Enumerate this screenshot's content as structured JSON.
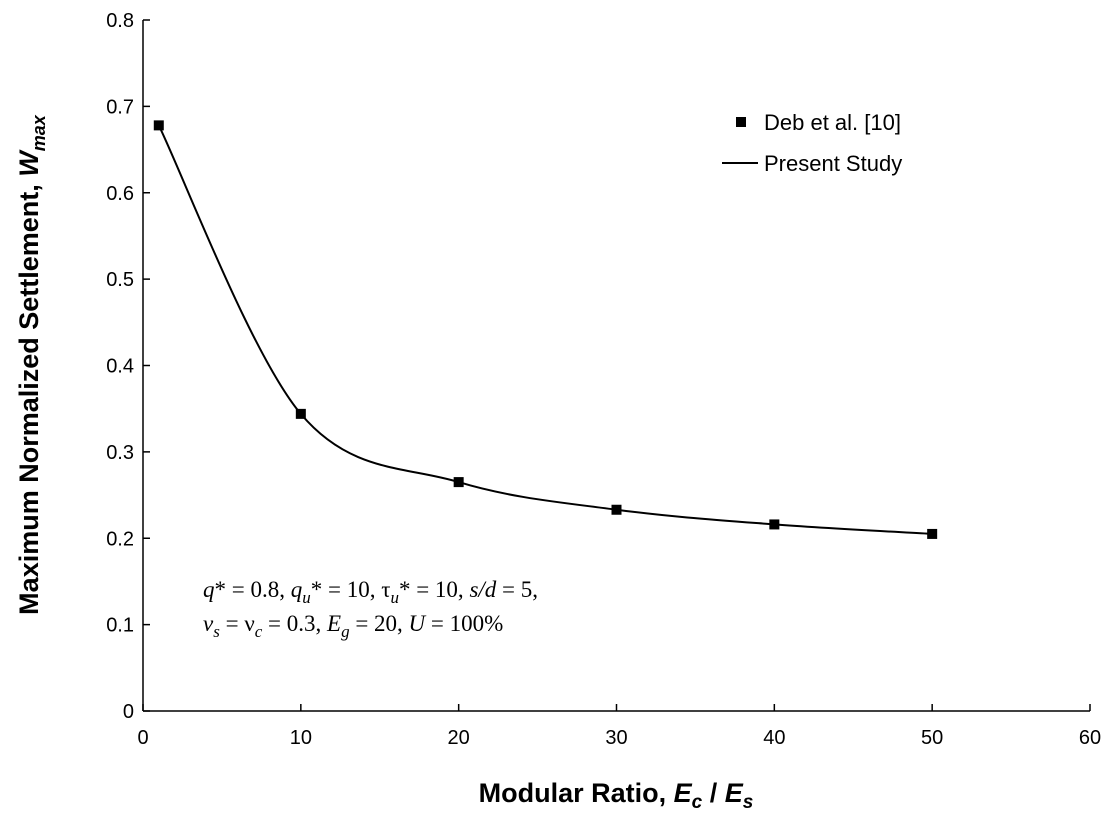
{
  "chart_data": {
    "type": "scatter",
    "xlabel": "Modular Ratio, Ec / Es",
    "xlabel_parts": {
      "main": "Modular Ratio, ",
      "var1": "E",
      "sub1": "c",
      "sep": " / ",
      "var2": "E",
      "sub2": "s"
    },
    "ylabel": "Maximum Normalized Settlement, Wmax",
    "ylabel_parts": {
      "main": "Maximum Normalized Settlement, ",
      "var": "W",
      "sub": "max"
    },
    "xlim": [
      0,
      60
    ],
    "ylim": [
      0,
      0.8
    ],
    "x_ticks": [
      "0",
      "10",
      "20",
      "30",
      "40",
      "50",
      "60"
    ],
    "y_ticks": [
      "0",
      "0.1",
      "0.2",
      "0.3",
      "0.4",
      "0.5",
      "0.6",
      "0.7",
      "0.8"
    ],
    "grid": false,
    "legend_position": "top-right",
    "series": [
      {
        "name": "Deb et al. [10]",
        "style": "markers",
        "marker": "square",
        "x": [
          1,
          10,
          20,
          30,
          40,
          50
        ],
        "y": [
          0.678,
          0.344,
          0.265,
          0.233,
          0.216,
          0.205
        ]
      },
      {
        "name": "Present Study",
        "style": "line",
        "x": [
          1,
          10,
          20,
          30,
          40,
          50
        ],
        "y": [
          0.678,
          0.344,
          0.265,
          0.233,
          0.216,
          0.205
        ]
      }
    ],
    "annotation": {
      "line1": "q* = 0.8, qu* = 10, τu* = 10, s/d = 5,",
      "line2": "νs = νc = 0.3, Eg = 20, U = 100%"
    },
    "colors": {
      "axis": "#000000",
      "series": "#000000"
    }
  }
}
